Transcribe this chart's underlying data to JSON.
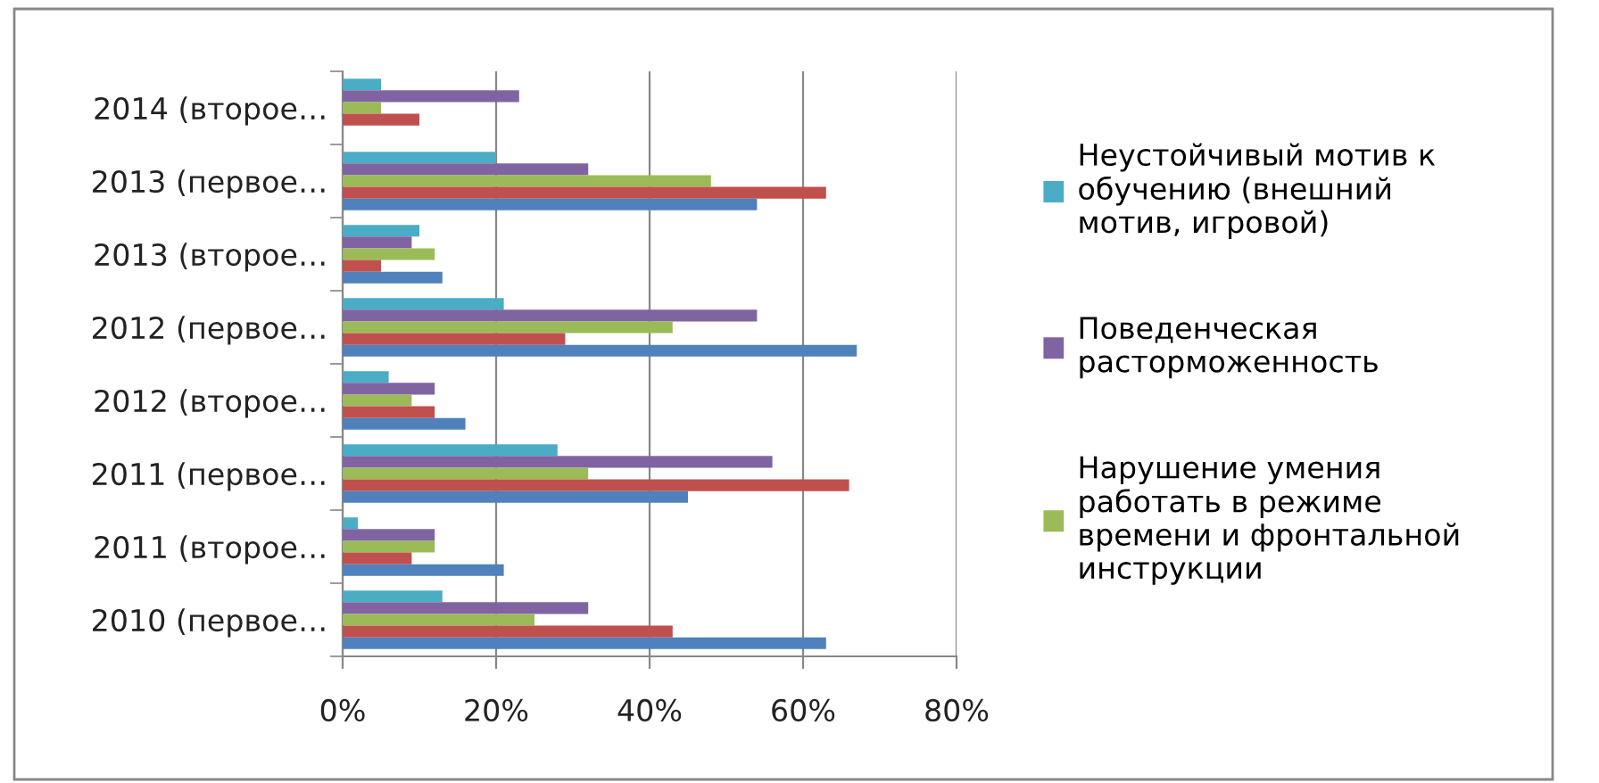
{
  "chart_data": {
    "type": "bar",
    "orientation": "horizontal",
    "categories": [
      "2014 (второе…",
      "2013 (первое…",
      "2013 (второе…",
      "2012 (первое…",
      "2012 (второе…",
      "2011 (первое…",
      "2011 (второе…",
      "2010 (первое…"
    ],
    "series": [
      {
        "name": "Неустойчивый мотив к обучению (внешний мотив, игровой)",
        "color": "#4bacc6",
        "values": [
          5,
          20,
          10,
          21,
          6,
          28,
          2,
          13
        ]
      },
      {
        "name": "Поведенческая расторможенность",
        "color": "#8064a2",
        "values": [
          23,
          32,
          9,
          54,
          12,
          56,
          12,
          32
        ]
      },
      {
        "name": "Нарушение умения работать в режиме времени и фронтальной инструкции",
        "color": "#9bbb59",
        "values": [
          5,
          48,
          12,
          43,
          9,
          32,
          12,
          25
        ]
      },
      {
        "color": "#c0504d",
        "values": [
          10,
          63,
          5,
          29,
          12,
          66,
          9,
          43
        ]
      },
      {
        "color": "#4f81bd",
        "values": [
          0,
          54,
          13,
          67,
          16,
          45,
          21,
          63
        ]
      }
    ],
    "xlim": [
      0,
      80
    ],
    "xticks": [
      {
        "value": 0,
        "label": "0%"
      },
      {
        "value": 20,
        "label": "20%"
      },
      {
        "value": 40,
        "label": "40%"
      },
      {
        "value": 60,
        "label": "60%"
      },
      {
        "value": 80,
        "label": "80%"
      }
    ],
    "grid": "x",
    "legend": "right"
  }
}
